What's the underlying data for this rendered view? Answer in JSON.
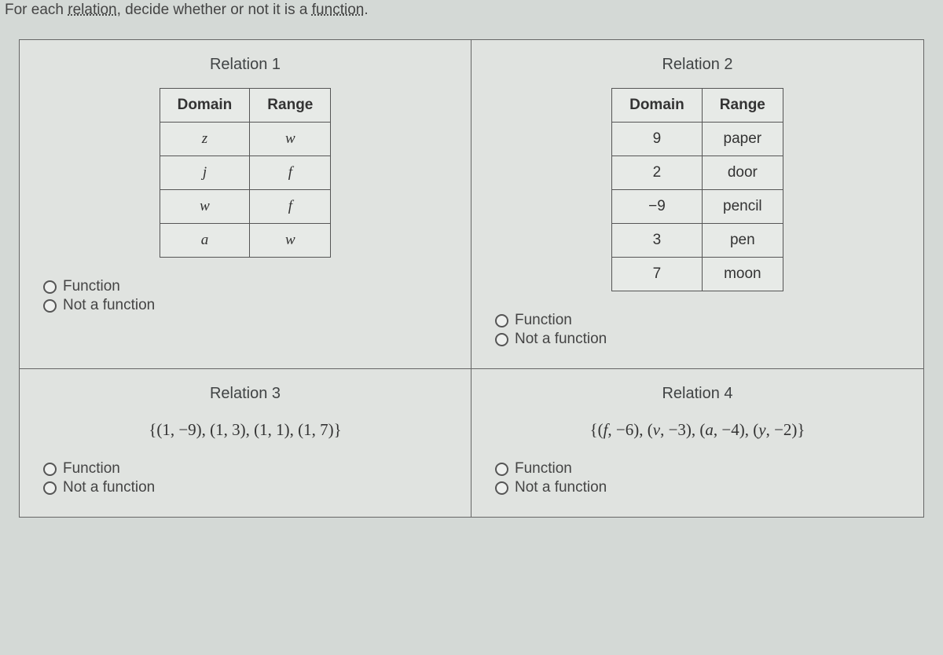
{
  "prompt": {
    "before": "For each ",
    "term1": "relation",
    "mid": ", decide whether or not it is a ",
    "term2": "function",
    "after": "."
  },
  "labels": {
    "domain": "Domain",
    "range": "Range",
    "function": "Function",
    "not_function": "Not a function"
  },
  "relations": {
    "r1": {
      "title": "Relation 1",
      "rows": [
        {
          "d": "z",
          "r": "w"
        },
        {
          "d": "j",
          "r": "f"
        },
        {
          "d": "w",
          "r": "f"
        },
        {
          "d": "a",
          "r": "w"
        }
      ]
    },
    "r2": {
      "title": "Relation 2",
      "rows": [
        {
          "d": "9",
          "r": "paper"
        },
        {
          "d": "2",
          "r": "door"
        },
        {
          "d": "−9",
          "r": "pencil"
        },
        {
          "d": "3",
          "r": "pen"
        },
        {
          "d": "7",
          "r": "moon"
        }
      ]
    },
    "r3": {
      "title": "Relation 3",
      "set": "{(1, −9), (1, 3), (1, 1), (1, 7)}"
    },
    "r4": {
      "title": "Relation 4",
      "set_open": "{(",
      "p1v": "f",
      "p1n": ", −6), (",
      "p2v": "v",
      "p2n": ", −3), (",
      "p3v": "a",
      "p3n": ", −4), (",
      "p4v": "y",
      "p4n": ", −2)}"
    }
  },
  "colors": {
    "bg": "#d4d9d6",
    "border": "#666",
    "text": "#333"
  }
}
